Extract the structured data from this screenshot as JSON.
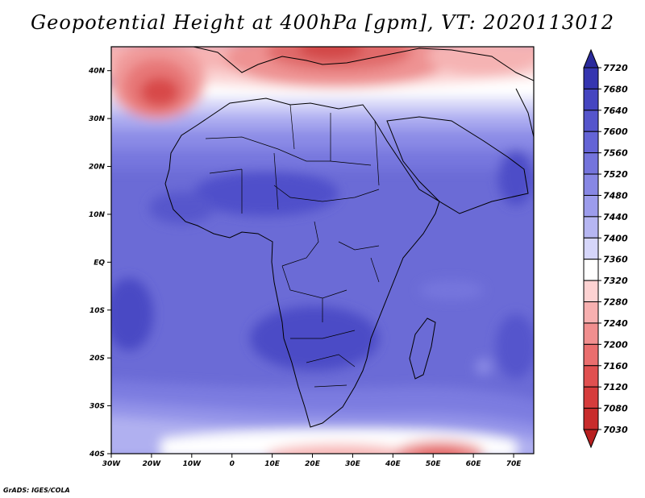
{
  "title": "Geopotential Height at 400hPa [gpm], VT: 2020113012",
  "credit": "GrADS: IGES/COLA",
  "map": {
    "lon_range": [
      -30,
      75
    ],
    "lat_range": [
      -40,
      45
    ],
    "lon_ticks": [
      {
        "value": -30,
        "label": "30W"
      },
      {
        "value": -20,
        "label": "20W"
      },
      {
        "value": -10,
        "label": "10W"
      },
      {
        "value": 0,
        "label": "0"
      },
      {
        "value": 10,
        "label": "10E"
      },
      {
        "value": 20,
        "label": "20E"
      },
      {
        "value": 30,
        "label": "30E"
      },
      {
        "value": 40,
        "label": "40E"
      },
      {
        "value": 50,
        "label": "50E"
      },
      {
        "value": 60,
        "label": "60E"
      },
      {
        "value": 70,
        "label": "70E"
      }
    ],
    "lat_ticks": [
      {
        "value": 40,
        "label": "40N"
      },
      {
        "value": 30,
        "label": "30N"
      },
      {
        "value": 20,
        "label": "20N"
      },
      {
        "value": 10,
        "label": "10N"
      },
      {
        "value": 0,
        "label": "EQ"
      },
      {
        "value": -10,
        "label": "10S"
      },
      {
        "value": -20,
        "label": "20S"
      },
      {
        "value": -30,
        "label": "30S"
      },
      {
        "value": -40,
        "label": "40S"
      }
    ]
  },
  "colorbar": {
    "levels": [
      "7720",
      "7680",
      "7640",
      "7600",
      "7560",
      "7520",
      "7480",
      "7440",
      "7400",
      "7360",
      "7320",
      "7280",
      "7240",
      "7200",
      "7160",
      "7120",
      "7080",
      "7030"
    ],
    "colors": [
      "#2a2a9c",
      "#3535b0",
      "#4545c0",
      "#5555cc",
      "#6464d6",
      "#7474dc",
      "#8787e4",
      "#9c9cec",
      "#b6b6f2",
      "#d6d6fa",
      "#ffffff",
      "#fdd2d2",
      "#f7b0b0",
      "#f18f8f",
      "#ea6e6e",
      "#e05050",
      "#d63c3c",
      "#c82c2c",
      "#b81f1f"
    ]
  }
}
